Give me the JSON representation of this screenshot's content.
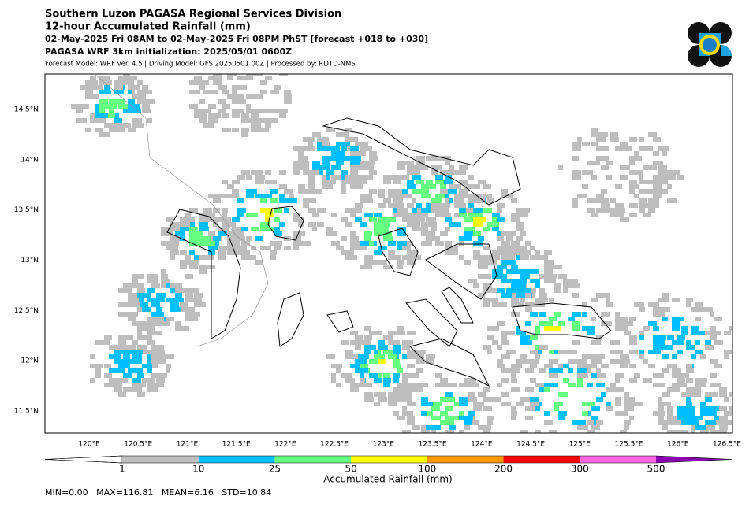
{
  "header": {
    "lines": [
      "Southern Luzon PAGASA Regional Services Division",
      "12-hour Accumulated Rainfall (mm)",
      "02-May-2025 Fri 08AM to 02-May-2025 Fri 08PM PhST [forecast +018 to +030]",
      "PAGASA WRF 3km initialization: 2025/05/01 0600Z",
      "Forecast Model: WRF ver. 4.5 | Driving Model: GFS 20250501 00Z | Processed by: RDTD-NMS"
    ]
  },
  "map": {
    "lon_labels": [
      "120°E",
      "120.5°E",
      "121°E",
      "121.5°E",
      "122°E",
      "122.5°E",
      "123°E",
      "123.5°E",
      "124°E",
      "124.5°E",
      "125°E",
      "125.5°E",
      "126°E",
      "126.5°E"
    ],
    "lat_labels": [
      "14.5°N",
      "14°N",
      "13.5°N",
      "13°N",
      "12.5°N",
      "12°N",
      "11.5°N"
    ]
  },
  "colorbar": {
    "ticks": [
      1,
      10,
      25,
      50,
      100,
      200,
      300,
      500
    ],
    "colors": [
      "#bebebe",
      "#00bfff",
      "#66ff80",
      "#ffff00",
      "#ff9900",
      "#ff0000",
      "#ff66dd",
      "#8b00b0"
    ],
    "under_color": "#ffffff",
    "label": "Accumulated Rainfall (mm)"
  },
  "stats": "MIN=0.00   MAX=116.81   MEAN=6.16   STD=10.84"
}
